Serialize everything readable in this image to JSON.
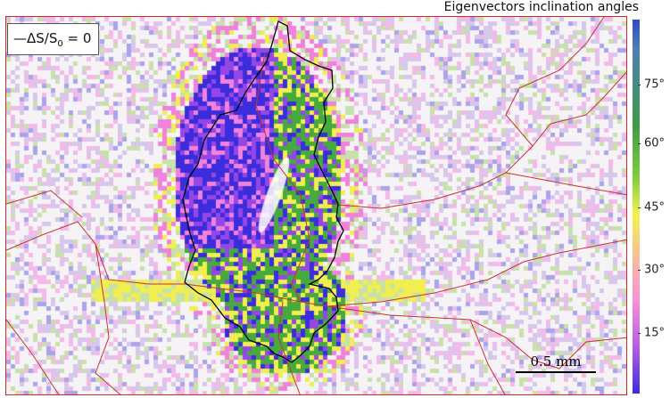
{
  "title": "Eigenvectors inclination angles",
  "legend": {
    "label_prefix": "—ΔS/S",
    "label_sub": "0",
    "label_suffix": " = 0"
  },
  "colorbar": {
    "ticks": [
      "75°",
      "60°",
      "45°",
      "30°",
      "15°"
    ],
    "colors": [
      "#2e49c8",
      "#3f9a4a",
      "#7fcd3c",
      "#f3f24c",
      "#fa8fd7",
      "#b25be6",
      "#3b2be2"
    ]
  },
  "scalebar": {
    "label": "0.5 mm"
  },
  "map": {
    "grain_boundary_color": "#d03030",
    "contour_color": "#000000"
  }
}
